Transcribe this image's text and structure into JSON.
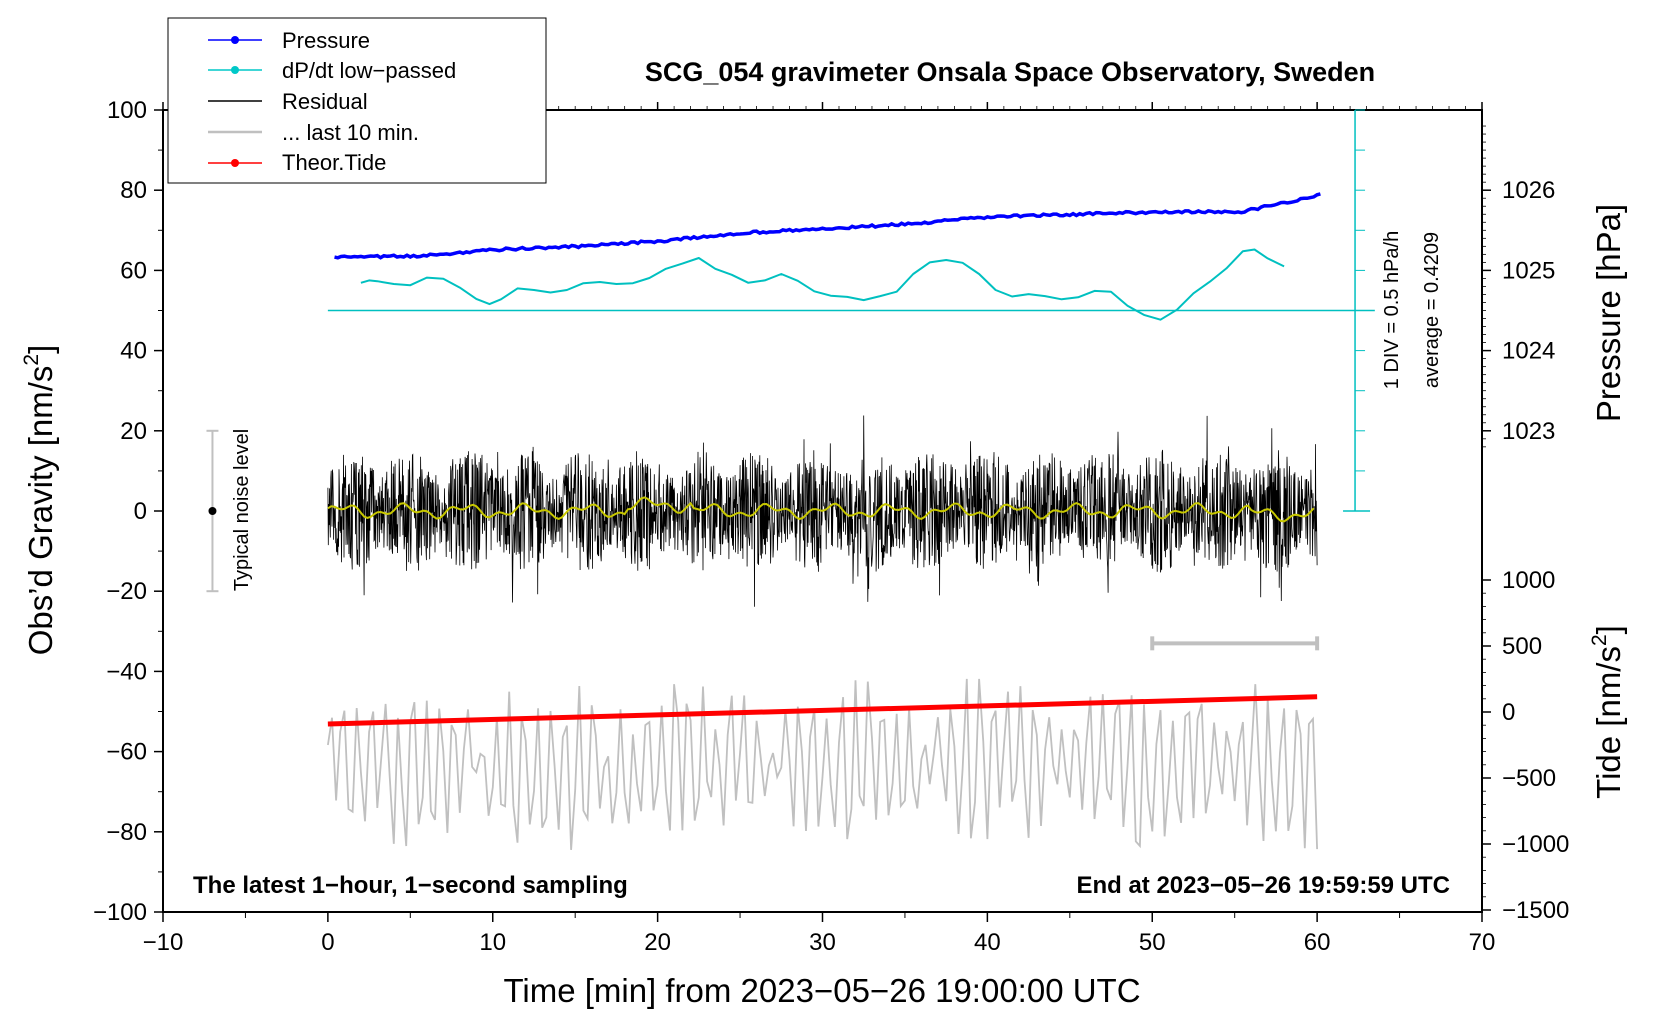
{
  "chart_data": {
    "type": "line",
    "title": "SCG_054 gravimeter Onsala Space Observatory, Sweden",
    "xlabel": "Time [min] from 2023−05−26 19:00:00 UTC",
    "ylabel_left": "Obs’d Gravity [nm/s",
    "ylabel_left_sup": "2",
    "ylabel_left_end": "]",
    "ylabel_right_pressure": "Pressure [hPa]",
    "ylabel_right_tide": "Tide [nm/s",
    "ylabel_right_tide_sup": "2",
    "ylabel_right_tide_end": "]",
    "xlim": [
      -10,
      70
    ],
    "ylim_left": [
      -100,
      100
    ],
    "pressure_range": [
      1022,
      1027
    ],
    "tide_range": [
      -1500,
      1500
    ],
    "x_ticks": [
      "−10",
      "0",
      "10",
      "20",
      "30",
      "40",
      "50",
      "60",
      "70"
    ],
    "y_left_ticks": [
      "100",
      "80",
      "60",
      "40",
      "20",
      "0",
      "−20",
      "−40",
      "−60",
      "−80",
      "−100"
    ],
    "pressure_ticks": [
      "1026",
      "1025",
      "1024",
      "1023"
    ],
    "tide_ticks": [
      "1000",
      "500",
      "0",
      "−500",
      "−1000",
      "−1500"
    ],
    "legend": [
      {
        "label": "Pressure",
        "color": "#0000ff",
        "marker": true
      },
      {
        "label": "dP/dt low−passed",
        "color": "#00c8c8",
        "marker": true
      },
      {
        "label": "Residual",
        "color": "#000000",
        "marker": false
      },
      {
        "label": "... last 10 min.",
        "color": "#c0c0c0",
        "marker": false
      },
      {
        "label": "Theor.Tide",
        "color": "#ff0000",
        "marker": true
      }
    ],
    "annotations": {
      "bottom_left": "The latest 1−hour, 1−second sampling",
      "bottom_right": "End at 2023−05−26 19:59:59 UTC",
      "noise_label": "Typical noise level",
      "div_label": "1 DIV = 0.5 hPa/h",
      "average_label": "average = 0.4209"
    },
    "noise_bar": {
      "x": -7,
      "y_low": -20,
      "y_high": 20
    },
    "last10_bar": {
      "x_start": 50,
      "x_end": 60
    },
    "pressure": {
      "x": [
        0,
        5,
        10,
        15,
        20,
        25,
        30,
        35,
        40,
        45,
        50,
        55,
        60
      ],
      "y": [
        1025.16,
        1025.18,
        1025.26,
        1025.3,
        1025.37,
        1025.47,
        1025.52,
        1025.58,
        1025.67,
        1025.7,
        1025.73,
        1025.73,
        1025.95
      ]
    },
    "dpdt": {
      "baseline_ratio": 0.4209,
      "div_value": 0.5,
      "x": [
        2,
        2.5,
        3,
        4,
        5,
        6,
        7,
        8,
        9,
        9.8,
        10.5,
        11.5,
        12.5,
        13.5,
        14.5,
        15.5,
        16.5,
        17.5,
        18.5,
        19.5,
        20.5,
        21.5,
        22.5,
        23.5,
        24.5,
        25.5,
        26.5,
        27.5,
        28.5,
        29.5,
        30.5,
        31.5,
        32.5,
        33.5,
        34.5,
        35.5,
        36.5,
        37.5,
        38.5,
        39.5,
        40.5,
        41.5,
        42.5,
        43.5,
        44.5,
        45.5,
        46.5,
        47.5,
        48.5,
        49.5,
        50.5,
        51.5,
        52.5,
        53.5,
        54.5,
        55.5,
        56.2,
        57,
        58
      ],
      "v": [
        0.69,
        0.75,
        0.73,
        0.66,
        0.63,
        0.82,
        0.79,
        0.57,
        0.29,
        0.16,
        0.28,
        0.55,
        0.51,
        0.45,
        0.51,
        0.68,
        0.71,
        0.66,
        0.68,
        0.81,
        1.04,
        1.17,
        1.31,
        1.04,
        0.89,
        0.69,
        0.75,
        0.91,
        0.74,
        0.48,
        0.37,
        0.34,
        0.26,
        0.36,
        0.47,
        0.91,
        1.2,
        1.26,
        1.19,
        0.91,
        0.51,
        0.35,
        0.41,
        0.36,
        0.28,
        0.33,
        0.49,
        0.47,
        0.12,
        -0.11,
        -0.23,
        0.02,
        0.43,
        0.72,
        1.05,
        1.48,
        1.52,
        1.3,
        1.1
      ]
    },
    "residual": {
      "x_start": 0,
      "x_end": 60,
      "mean": 0,
      "amplitude_nm_s2": 28,
      "smooth_amplitude": 2
    },
    "last10min": {
      "x_start": 0,
      "x_end": 60,
      "offset": -63,
      "amplitude_nm_s2": 20
    },
    "tide": {
      "x": [
        0,
        60
      ],
      "y": [
        0,
        100
      ]
    }
  }
}
